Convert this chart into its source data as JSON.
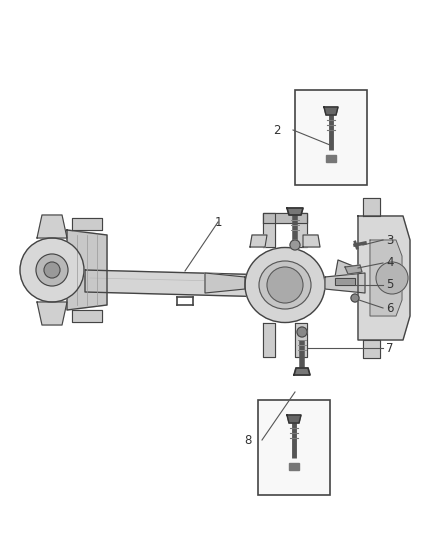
{
  "background_color": "#ffffff",
  "fig_width": 4.38,
  "fig_height": 5.33,
  "dpi": 100,
  "line_color": "#555555",
  "label_color": "#333333",
  "label_fontsize": 8.5,
  "axle_color": "#c8c8c8",
  "axle_edge": "#444444",
  "part_color": "#d0d0d0",
  "part_edge": "#444444",
  "dark_part": "#888888",
  "very_dark": "#555555"
}
